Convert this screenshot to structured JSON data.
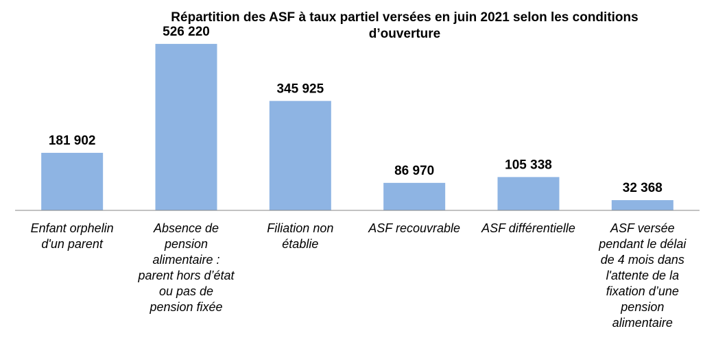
{
  "chart_data": {
    "type": "bar",
    "title_lines": [
      "Répartition  des ASF à taux partiel  versées en juin 2021 selon les conditions",
      "d’ouverture"
    ],
    "categories": [
      [
        "Enfant orphelin",
        "d'un parent"
      ],
      [
        "Absence de",
        "pension",
        "alimentaire :",
        "parent hors d’état",
        "ou pas de",
        "pension fixée"
      ],
      [
        "Filiation non",
        "établie"
      ],
      [
        "ASF recouvrable"
      ],
      [
        "ASF différentielle"
      ],
      [
        "ASF versée",
        "pendant le délai",
        "de 4 mois dans",
        "l'attente de la",
        "fixation d’une",
        "pension",
        "alimentaire"
      ]
    ],
    "values": [
      181902,
      526220,
      345925,
      86970,
      105338,
      32368
    ],
    "value_labels": [
      "181 902",
      "526 220",
      "345 925",
      "86 970",
      "105 338",
      "32 368"
    ],
    "ylim": [
      0,
      600000
    ],
    "bar_color": "#8EB4E3",
    "axis_color": "#868686",
    "grid": false,
    "legend": "none"
  }
}
